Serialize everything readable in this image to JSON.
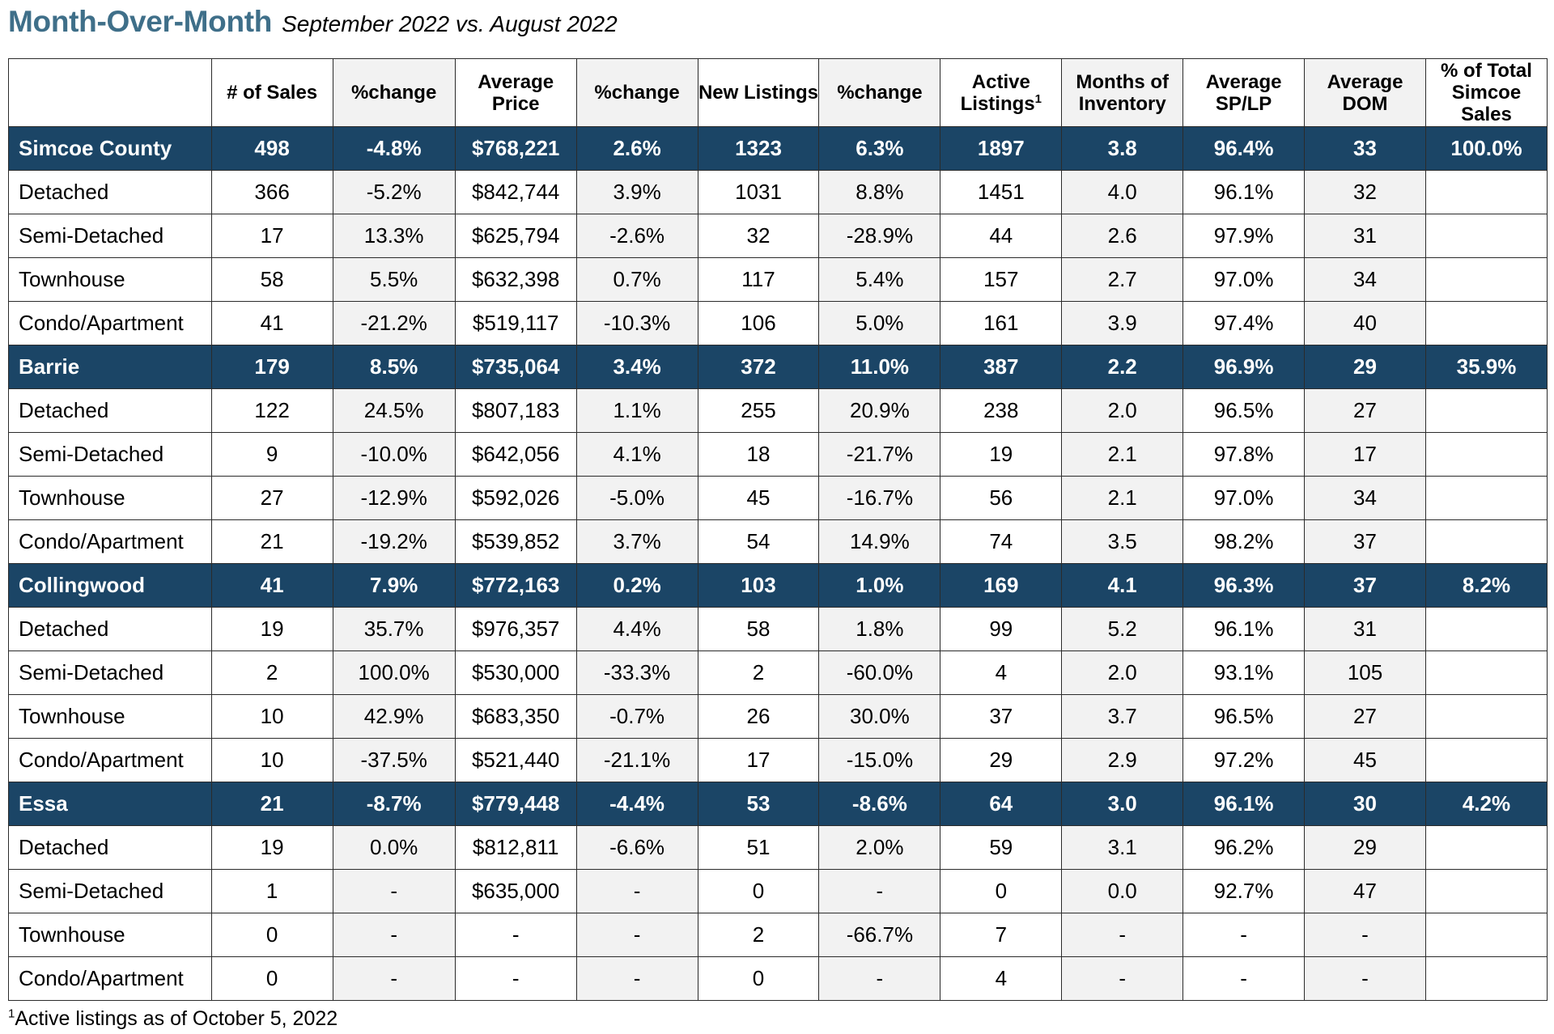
{
  "title": "Month-Over-Month",
  "subtitle": "September 2022 vs. August 2022",
  "header": [
    "",
    "# of Sales",
    "%change",
    "Average Price",
    "%change",
    "New Listings",
    "%change",
    "Active Listings",
    "Months of Inventory",
    "Average SP/LP",
    "Average DOM",
    "% of Total Simcoe Sales"
  ],
  "header_superscript": "1",
  "rows": [
    {
      "region": true,
      "cells": [
        "Simcoe County",
        "498",
        "-4.8%",
        "$768,221",
        "2.6%",
        "1323",
        "6.3%",
        "1897",
        "3.8",
        "96.4%",
        "33",
        "100.0%"
      ]
    },
    {
      "region": false,
      "cells": [
        "Detached",
        "366",
        "-5.2%",
        "$842,744",
        "3.9%",
        "1031",
        "8.8%",
        "1451",
        "4.0",
        "96.1%",
        "32",
        ""
      ]
    },
    {
      "region": false,
      "cells": [
        "Semi-Detached",
        "17",
        "13.3%",
        "$625,794",
        "-2.6%",
        "32",
        "-28.9%",
        "44",
        "2.6",
        "97.9%",
        "31",
        ""
      ]
    },
    {
      "region": false,
      "cells": [
        "Townhouse",
        "58",
        "5.5%",
        "$632,398",
        "0.7%",
        "117",
        "5.4%",
        "157",
        "2.7",
        "97.0%",
        "34",
        ""
      ]
    },
    {
      "region": false,
      "cells": [
        "Condo/Apartment",
        "41",
        "-21.2%",
        "$519,117",
        "-10.3%",
        "106",
        "5.0%",
        "161",
        "3.9",
        "97.4%",
        "40",
        ""
      ]
    },
    {
      "region": true,
      "cells": [
        "Barrie",
        "179",
        "8.5%",
        "$735,064",
        "3.4%",
        "372",
        "11.0%",
        "387",
        "2.2",
        "96.9%",
        "29",
        "35.9%"
      ]
    },
    {
      "region": false,
      "cells": [
        "Detached",
        "122",
        "24.5%",
        "$807,183",
        "1.1%",
        "255",
        "20.9%",
        "238",
        "2.0",
        "96.5%",
        "27",
        ""
      ]
    },
    {
      "region": false,
      "cells": [
        "Semi-Detached",
        "9",
        "-10.0%",
        "$642,056",
        "4.1%",
        "18",
        "-21.7%",
        "19",
        "2.1",
        "97.8%",
        "17",
        ""
      ]
    },
    {
      "region": false,
      "cells": [
        "Townhouse",
        "27",
        "-12.9%",
        "$592,026",
        "-5.0%",
        "45",
        "-16.7%",
        "56",
        "2.1",
        "97.0%",
        "34",
        ""
      ]
    },
    {
      "region": false,
      "cells": [
        "Condo/Apartment",
        "21",
        "-19.2%",
        "$539,852",
        "3.7%",
        "54",
        "14.9%",
        "74",
        "3.5",
        "98.2%",
        "37",
        ""
      ]
    },
    {
      "region": true,
      "cells": [
        "Collingwood",
        "41",
        "7.9%",
        "$772,163",
        "0.2%",
        "103",
        "1.0%",
        "169",
        "4.1",
        "96.3%",
        "37",
        "8.2%"
      ]
    },
    {
      "region": false,
      "cells": [
        "Detached",
        "19",
        "35.7%",
        "$976,357",
        "4.4%",
        "58",
        "1.8%",
        "99",
        "5.2",
        "96.1%",
        "31",
        ""
      ]
    },
    {
      "region": false,
      "cells": [
        "Semi-Detached",
        "2",
        "100.0%",
        "$530,000",
        "-33.3%",
        "2",
        "-60.0%",
        "4",
        "2.0",
        "93.1%",
        "105",
        ""
      ]
    },
    {
      "region": false,
      "cells": [
        "Townhouse",
        "10",
        "42.9%",
        "$683,350",
        "-0.7%",
        "26",
        "30.0%",
        "37",
        "3.7",
        "96.5%",
        "27",
        ""
      ]
    },
    {
      "region": false,
      "cells": [
        "Condo/Apartment",
        "10",
        "-37.5%",
        "$521,440",
        "-21.1%",
        "17",
        "-15.0%",
        "29",
        "2.9",
        "97.2%",
        "45",
        ""
      ]
    },
    {
      "region": true,
      "cells": [
        "Essa",
        "21",
        "-8.7%",
        "$779,448",
        "-4.4%",
        "53",
        "-8.6%",
        "64",
        "3.0",
        "96.1%",
        "30",
        "4.2%"
      ]
    },
    {
      "region": false,
      "cells": [
        "Detached",
        "19",
        "0.0%",
        "$812,811",
        "-6.6%",
        "51",
        "2.0%",
        "59",
        "3.1",
        "96.2%",
        "29",
        ""
      ]
    },
    {
      "region": false,
      "cells": [
        "Semi-Detached",
        "1",
        "-",
        "$635,000",
        "-",
        "0",
        "-",
        "0",
        "0.0",
        "92.7%",
        "47",
        ""
      ]
    },
    {
      "region": false,
      "cells": [
        "Townhouse",
        "0",
        "-",
        "-",
        "-",
        "2",
        "-66.7%",
        "7",
        "-",
        "-",
        "-",
        ""
      ]
    },
    {
      "region": false,
      "cells": [
        "Condo/Apartment",
        "0",
        "-",
        "-",
        "-",
        "0",
        "-",
        "4",
        "-",
        "-",
        "-",
        ""
      ]
    }
  ],
  "footnote": {
    "marker": "1",
    "text": "Active listings as of October 5, 2022"
  }
}
